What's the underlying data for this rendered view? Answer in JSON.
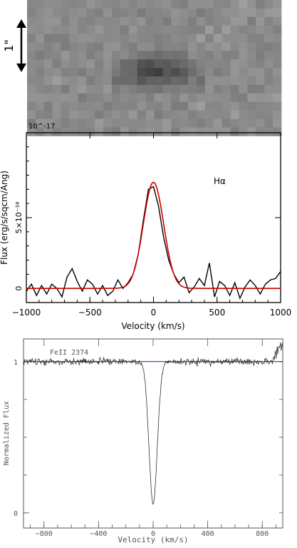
{
  "image_panel": {
    "scale_label": "1\""
  },
  "chart_data": [
    {
      "type": "line",
      "title": "",
      "annotation": "Hα",
      "xlabel": "Velocity (km/s)",
      "ylabel": "Flux (erg/s/sqcm/Ang)",
      "ylabel_scale": "10^-17",
      "xlim": [
        -1000,
        1000
      ],
      "ylim": [
        -0.1,
        1.1
      ],
      "x_ticks": [
        -1000,
        -500,
        0,
        500,
        1000
      ],
      "y_ticks": [
        {
          "value": 0,
          "label": "0"
        },
        {
          "value": 0.5,
          "label": "5×10⁻¹⁸"
        }
      ],
      "series": [
        {
          "color": "#000000",
          "style": "data",
          "x": [
            -1000,
            -960,
            -920,
            -880,
            -840,
            -800,
            -760,
            -720,
            -680,
            -640,
            -600,
            -560,
            -520,
            -480,
            -440,
            -400,
            -360,
            -320,
            -280,
            -240,
            -200,
            -160,
            -120,
            -80,
            -40,
            0,
            40,
            80,
            120,
            160,
            200,
            240,
            280,
            320,
            360,
            400,
            440,
            480,
            520,
            560,
            600,
            640,
            680,
            720,
            760,
            800,
            840,
            880,
            920,
            960,
            1000
          ],
          "y": [
            -0.02,
            0.03,
            -0.05,
            0.02,
            -0.04,
            0.03,
            0.0,
            -0.06,
            0.08,
            0.14,
            0.05,
            -0.02,
            0.06,
            0.03,
            -0.04,
            0.02,
            -0.05,
            -0.02,
            0.06,
            0.0,
            0.04,
            0.1,
            0.24,
            0.48,
            0.7,
            0.72,
            0.58,
            0.36,
            0.2,
            0.1,
            0.04,
            0.08,
            -0.03,
            0.01,
            0.07,
            0.02,
            0.18,
            -0.06,
            0.05,
            0.02,
            -0.05,
            0.04,
            -0.07,
            0.01,
            0.06,
            0.02,
            -0.04,
            0.03,
            0.06,
            0.07,
            0.12
          ]
        },
        {
          "color": "#cc0000",
          "style": "gaussian-fit",
          "amplitude": 0.75,
          "center": 0,
          "sigma": 80
        }
      ]
    },
    {
      "type": "line",
      "title": "",
      "annotation": "FeII 2374",
      "xlabel": "Velocity (km/s)",
      "ylabel": "Normalized Flux",
      "xlim": [
        -950,
        950
      ],
      "ylim": [
        -0.1,
        1.15
      ],
      "x_ticks": [
        -800,
        -400,
        0,
        400,
        800
      ],
      "y_ticks": [
        {
          "value": 0,
          "label": "0"
        },
        {
          "value": 1,
          "label": "1"
        }
      ],
      "continuum_color": "#1a1aaa",
      "absorption": {
        "center": 0,
        "min_flux": 0.06,
        "width": 55
      }
    }
  ]
}
